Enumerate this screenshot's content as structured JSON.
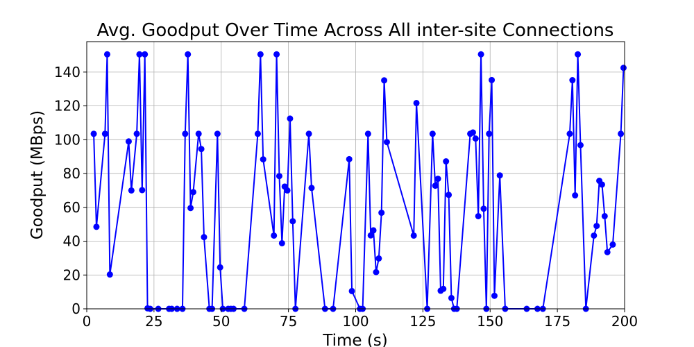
{
  "chart_data": {
    "type": "line",
    "title": "Avg. Goodput Over Time Across All inter-site Connections",
    "xlabel": "Time (s)",
    "ylabel": "Goodput (MBps)",
    "xlim": [
      0,
      200
    ],
    "ylim": [
      0,
      158
    ],
    "x_ticks": [
      0,
      25,
      50,
      75,
      100,
      125,
      150,
      175,
      200
    ],
    "y_ticks": [
      0,
      20,
      40,
      60,
      80,
      100,
      120,
      140
    ],
    "grid": true,
    "legend": "none",
    "series": [
      {
        "color": "#0000ff",
        "marker": "circle",
        "x": [
          2.6,
          3.6,
          6.8,
          7.6,
          8.6,
          15.6,
          16.6,
          18.6,
          19.6,
          20.6,
          21.6,
          22.6,
          23.6,
          26.6,
          30.6,
          31.6,
          33.6,
          35.6,
          36.6,
          37.6,
          38.6,
          39.6,
          41.6,
          42.6,
          43.6,
          45.6,
          46.6,
          48.6,
          49.6,
          50.6,
          52.6,
          53.6,
          54.6,
          58.6,
          63.6,
          64.6,
          65.6,
          69.6,
          70.6,
          71.6,
          72.6,
          73.6,
          74.6,
          75.6,
          76.6,
          77.6,
          82.6,
          83.6,
          88.6,
          91.6,
          97.6,
          98.6,
          101.6,
          102.6,
          104.6,
          105.6,
          106.6,
          107.6,
          108.6,
          109.6,
          110.6,
          111.6,
          121.6,
          122.6,
          126.6,
          128.6,
          129.6,
          130.6,
          131.6,
          132.6,
          133.6,
          134.6,
          135.6,
          136.6,
          137.6,
          142.6,
          143.6,
          144.6,
          145.6,
          146.6,
          147.6,
          148.6,
          149.6,
          150.6,
          151.6,
          153.6,
          155.6,
          163.6,
          167.6,
          169.6,
          179.6,
          180.6,
          181.6,
          182.6,
          183.6,
          185.6,
          188.6,
          189.6,
          190.6,
          191.6,
          192.6,
          193.6,
          195.6,
          198.6,
          199.6
        ],
        "y": [
          103.5,
          48.5,
          103.5,
          150.5,
          20.3,
          99,
          70,
          103.5,
          150.5,
          70.2,
          150.5,
          0.3,
          0,
          0,
          0,
          0,
          0,
          0,
          103.5,
          150.5,
          59.6,
          69,
          103.5,
          94.5,
          42.4,
          0,
          0,
          103.5,
          24.5,
          0,
          0,
          0,
          0,
          0,
          103.5,
          150.5,
          88.4,
          43.3,
          150.5,
          78.5,
          38.8,
          72.3,
          70,
          112.5,
          51.8,
          0,
          103.5,
          71.5,
          0,
          0,
          88.5,
          10.5,
          0,
          0,
          103.5,
          43.4,
          46.4,
          21.7,
          29.8,
          56.8,
          135.1,
          98.6,
          43.3,
          121.7,
          0,
          103.5,
          72.8,
          76.9,
          10.7,
          11.8,
          87.2,
          67.4,
          6.4,
          0,
          0,
          103.5,
          104.3,
          100.7,
          54.8,
          150.5,
          59.2,
          0,
          103.5,
          135.3,
          7.7,
          78.9,
          0,
          0,
          0,
          0,
          103.5,
          135.2,
          67.1,
          150.5,
          96.8,
          0,
          43.3,
          49,
          75.7,
          73.5,
          54.8,
          33.5,
          38,
          103.5,
          142.5
        ]
      }
    ]
  }
}
